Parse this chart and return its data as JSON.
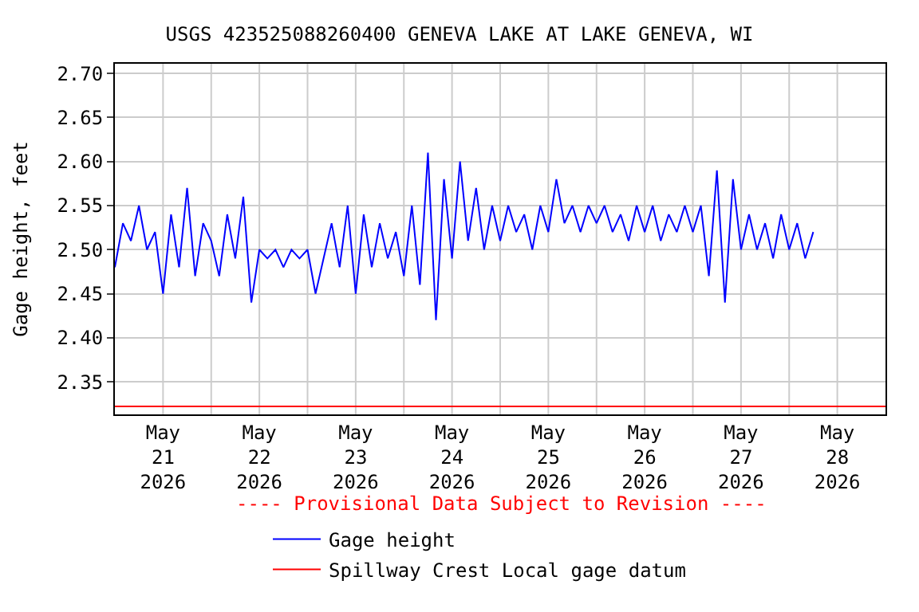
{
  "chart_data": {
    "type": "line",
    "title": "USGS 423525088260400 GENEVA LAKE AT LAKE GENEVA, WI",
    "ylabel": "Gage height, feet",
    "x": [
      "2026-05-21T00:00",
      "2026-05-21T02:00",
      "2026-05-21T04:00",
      "2026-05-21T06:00",
      "2026-05-21T08:00",
      "2026-05-21T10:00",
      "2026-05-21T12:00",
      "2026-05-21T14:00",
      "2026-05-21T16:00",
      "2026-05-21T18:00",
      "2026-05-21T20:00",
      "2026-05-21T22:00",
      "2026-05-22T00:00",
      "2026-05-22T02:00",
      "2026-05-22T04:00",
      "2026-05-22T06:00",
      "2026-05-22T08:00",
      "2026-05-22T10:00",
      "2026-05-22T12:00",
      "2026-05-22T14:00",
      "2026-05-22T16:00",
      "2026-05-22T18:00",
      "2026-05-22T20:00",
      "2026-05-22T22:00",
      "2026-05-23T00:00",
      "2026-05-23T02:00",
      "2026-05-23T04:00",
      "2026-05-23T06:00",
      "2026-05-23T08:00",
      "2026-05-23T10:00",
      "2026-05-23T12:00",
      "2026-05-23T14:00",
      "2026-05-23T16:00",
      "2026-05-23T18:00",
      "2026-05-23T20:00",
      "2026-05-23T22:00",
      "2026-05-24T00:00",
      "2026-05-24T02:00",
      "2026-05-24T04:00",
      "2026-05-24T06:00",
      "2026-05-24T08:00",
      "2026-05-24T10:00",
      "2026-05-24T12:00",
      "2026-05-24T14:00",
      "2026-05-24T16:00",
      "2026-05-24T18:00",
      "2026-05-24T20:00",
      "2026-05-24T22:00",
      "2026-05-25T00:00",
      "2026-05-25T02:00",
      "2026-05-25T04:00",
      "2026-05-25T06:00",
      "2026-05-25T08:00",
      "2026-05-25T10:00",
      "2026-05-25T12:00",
      "2026-05-25T14:00",
      "2026-05-25T16:00",
      "2026-05-25T18:00",
      "2026-05-25T20:00",
      "2026-05-25T22:00",
      "2026-05-26T00:00",
      "2026-05-26T02:00",
      "2026-05-26T04:00",
      "2026-05-26T06:00",
      "2026-05-26T08:00",
      "2026-05-26T10:00",
      "2026-05-26T12:00",
      "2026-05-26T14:00",
      "2026-05-26T16:00",
      "2026-05-26T18:00",
      "2026-05-26T20:00",
      "2026-05-26T22:00",
      "2026-05-27T00:00",
      "2026-05-27T02:00",
      "2026-05-27T04:00",
      "2026-05-27T06:00",
      "2026-05-27T08:00",
      "2026-05-27T10:00",
      "2026-05-27T12:00",
      "2026-05-27T14:00",
      "2026-05-27T16:00",
      "2026-05-27T18:00",
      "2026-05-27T20:00",
      "2026-05-27T22:00",
      "2026-05-28T00:00",
      "2026-05-28T02:00",
      "2026-05-28T04:00",
      "2026-05-28T06:00"
    ],
    "series": [
      {
        "name": "Gage height",
        "color": "#0000ff",
        "values": [
          2.48,
          2.53,
          2.51,
          2.55,
          2.5,
          2.52,
          2.45,
          2.54,
          2.48,
          2.57,
          2.47,
          2.53,
          2.51,
          2.47,
          2.54,
          2.49,
          2.56,
          2.44,
          2.5,
          2.49,
          2.5,
          2.48,
          2.5,
          2.49,
          2.5,
          2.45,
          2.49,
          2.53,
          2.48,
          2.55,
          2.45,
          2.54,
          2.48,
          2.53,
          2.49,
          2.52,
          2.47,
          2.55,
          2.46,
          2.61,
          2.42,
          2.58,
          2.49,
          2.6,
          2.51,
          2.57,
          2.5,
          2.55,
          2.51,
          2.55,
          2.52,
          2.54,
          2.5,
          2.55,
          2.52,
          2.58,
          2.53,
          2.55,
          2.52,
          2.55,
          2.53,
          2.55,
          2.52,
          2.54,
          2.51,
          2.55,
          2.52,
          2.55,
          2.51,
          2.54,
          2.52,
          2.55,
          2.52,
          2.55,
          2.47,
          2.59,
          2.44,
          2.58,
          2.5,
          2.54,
          2.5,
          2.53,
          2.49,
          2.54,
          2.5,
          2.53,
          2.49,
          2.52
        ]
      }
    ],
    "ref_lines": [
      {
        "axis": "y",
        "value": 2.322,
        "label": "Spillway Crest Local gage datum",
        "color": "#ff0000"
      }
    ],
    "annotations": [
      "---- Provisional Data Subject to Revision ----"
    ],
    "xlim": [
      "2026-05-21T00:00",
      "2026-05-29T00:00"
    ],
    "xticks": [
      {
        "value": "2026-05-21T12:00",
        "label": "May\n21\n2026"
      },
      {
        "value": "2026-05-22T12:00",
        "label": "May\n22\n2026"
      },
      {
        "value": "2026-05-23T12:00",
        "label": "May\n23\n2026"
      },
      {
        "value": "2026-05-24T12:00",
        "label": "May\n24\n2026"
      },
      {
        "value": "2026-05-25T12:00",
        "label": "May\n25\n2026"
      },
      {
        "value": "2026-05-26T12:00",
        "label": "May\n26\n2026"
      },
      {
        "value": "2026-05-27T12:00",
        "label": "May\n27\n2026"
      },
      {
        "value": "2026-05-28T12:00",
        "label": "May\n28\n2026"
      },
      {
        "value": "2026-05-22T00:00",
        "label": null
      },
      {
        "value": "2026-05-23T00:00",
        "label": null
      },
      {
        "value": "2026-05-24T00:00",
        "label": null
      },
      {
        "value": "2026-05-25T00:00",
        "label": null
      },
      {
        "value": "2026-05-26T00:00",
        "label": null
      },
      {
        "value": "2026-05-27T00:00",
        "label": null
      },
      {
        "value": "2026-05-28T00:00",
        "label": null
      }
    ],
    "ylim": [
      2.313,
      2.711
    ],
    "yticks": [
      {
        "value": 2.35,
        "label": "2.35"
      },
      {
        "value": 2.4,
        "label": "2.40"
      },
      {
        "value": 2.45,
        "label": "2.45"
      },
      {
        "value": 2.5,
        "label": "2.50"
      },
      {
        "value": 2.55,
        "label": "2.55"
      },
      {
        "value": 2.6,
        "label": "2.60"
      },
      {
        "value": 2.65,
        "label": "2.65"
      },
      {
        "value": 2.7,
        "label": "2.70"
      }
    ],
    "grid": true,
    "legend": "bottom",
    "line_style": "solid",
    "marker": "none"
  }
}
